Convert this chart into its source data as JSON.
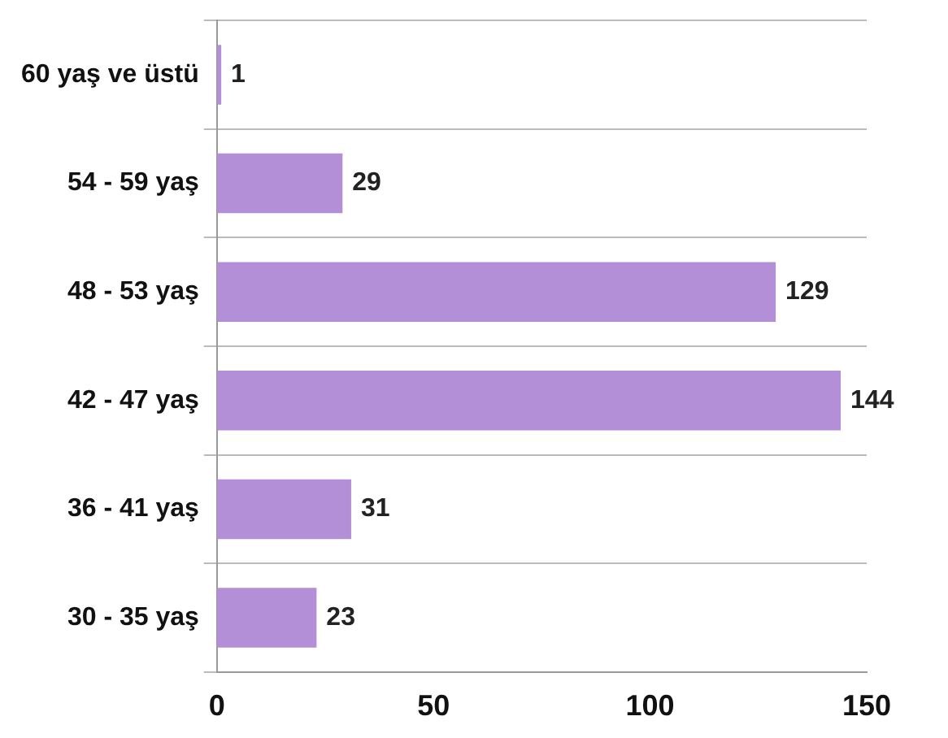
{
  "chart_data": {
    "type": "bar",
    "orientation": "horizontal",
    "categories": [
      "60 yaş ve üstü",
      "54 - 59 yaş",
      "48 - 53 yaş",
      "42 - 47 yaş",
      "36 - 41 yaş",
      "30 - 35 yaş"
    ],
    "values": [
      1,
      29,
      129,
      144,
      31,
      23
    ],
    "color": "#b28fd6",
    "xlim": [
      0,
      150
    ],
    "xticks": [
      0,
      50,
      100,
      150
    ],
    "grid": "y",
    "data_labels": true,
    "legend": false
  }
}
